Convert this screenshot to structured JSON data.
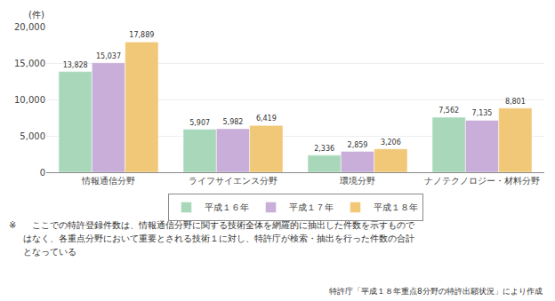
{
  "chart_data": {
    "type": "bar",
    "ylabel": "(件)",
    "categories": [
      "情報通信分野",
      "ライフサイエンス分野",
      "環境分野",
      "ナノテクノロジー・材料分野"
    ],
    "series": [
      {
        "name": "平成１６年",
        "color": "#a8d8b9",
        "values": [
          13828,
          5907,
          2336,
          7562
        ],
        "value_labels": [
          "13,828",
          "5,907",
          "2,336",
          "7,562"
        ]
      },
      {
        "name": "平成１７年",
        "color": "#c8aed8",
        "values": [
          15037,
          5982,
          2859,
          7135
        ],
        "value_labels": [
          "15,037",
          "5,982",
          "2,859",
          "7,135"
        ]
      },
      {
        "name": "平成１８年",
        "color": "#f0c878",
        "values": [
          17889,
          6419,
          3206,
          8801
        ],
        "value_labels": [
          "17,889",
          "6,419",
          "3,206",
          "8,801"
        ]
      }
    ],
    "ylim": [
      0,
      20000
    ],
    "yticks": [
      0,
      {
        "value": 5000,
        "label": "5,000"
      },
      {
        "value": 10000,
        "label": "10,000"
      },
      {
        "value": 15000,
        "label": "15,000"
      },
      {
        "value": 20000,
        "label": "20,000"
      }
    ],
    "grid": true,
    "legend": "bottom",
    "data_labels": true,
    "annotations": [
      "※",
      "　ここでの特許登録件数は、情報通信分野に関する技術全体を網羅的に抽出した件数を示すもので",
      "はなく、各重点分野において重要とされる技術１に対し、特許庁が検索・抽出を行った件数の合計",
      "となっている",
      "特許庁「平成１８年重点8分野の特許出願状況」により作成"
    ]
  }
}
